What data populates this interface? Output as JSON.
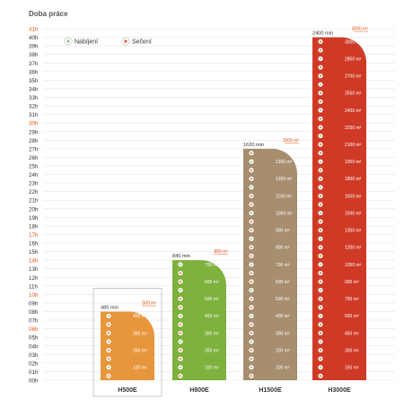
{
  "chart_data": {
    "type": "bar",
    "title": "Doba práce",
    "ylim": [
      0,
      41
    ],
    "y_ticks": [
      "00h",
      "01h",
      "02h",
      "03h",
      "04h",
      "05h",
      "06h",
      "07h",
      "08h",
      "09h",
      "10h",
      "11h",
      "12h",
      "13h",
      "14h",
      "15h",
      "16h",
      "17h",
      "18h",
      "19h",
      "20h",
      "21h",
      "22h",
      "23h",
      "24h",
      "25h",
      "26h",
      "27h",
      "28h",
      "29h",
      "30h",
      "31h",
      "32h",
      "33h",
      "34h",
      "35h",
      "36h",
      "37h",
      "38h",
      "39h",
      "40h",
      "41h"
    ],
    "highlighted_ticks": [
      "06h",
      "10h",
      "14h",
      "17h",
      "30h",
      "41h"
    ],
    "legend": [
      {
        "label": "Nabíjení",
        "icon": "bolt-icon"
      },
      {
        "label": "Sečení",
        "icon": "play-icon"
      }
    ],
    "series": [
      {
        "name": "H500E",
        "work_time_label": "480 min",
        "value_hours": 8,
        "area_max_label": "500 m²",
        "area_labels": [
          "100 m²",
          "200 m²",
          "300 m²",
          "400 m²",
          "500 m²"
        ],
        "color": "#e8963c",
        "selected": true
      },
      {
        "name": "H800E",
        "work_time_label": "840 min",
        "value_hours": 14,
        "area_max_label": "800 m²",
        "area_labels": [
          "100 m²",
          "200 m²",
          "300 m²",
          "400 m²",
          "500 m²",
          "600 m²",
          "700 m²",
          "800 m²"
        ],
        "color": "#7fb13d",
        "selected": false
      },
      {
        "name": "H1500E",
        "work_time_label": "1620 min",
        "value_hours": 27,
        "area_max_label": "1500 m²",
        "area_labels": [
          "100 m²",
          "200 m²",
          "300 m²",
          "400 m²",
          "500 m²",
          "600 m²",
          "700 m²",
          "800 m²",
          "900 m²",
          "1000 m²",
          "1100 m²",
          "1200 m²",
          "1300 m²",
          "1400 m²",
          "1500 m²"
        ],
        "color": "#a68e6f",
        "selected": false
      },
      {
        "name": "H3000E",
        "work_time_label": "2400 min",
        "value_hours": 40,
        "area_max_label": "3000 m²",
        "area_labels": [
          "150 m²",
          "300 m²",
          "450 m²",
          "600 m²",
          "750 m²",
          "900 m²",
          "1050 m²",
          "1200 m²",
          "1350 m²",
          "1500 m²",
          "1650 m²",
          "1800 m²",
          "1950 m²",
          "2100 m²",
          "2250 m²",
          "2400 m²",
          "2550 m²",
          "2700 m²",
          "2850 m²",
          "3000 m²"
        ],
        "color": "#cf3a26",
        "selected": false
      }
    ]
  },
  "colors": {
    "accent": "#e8541f",
    "axis_text": "#333333",
    "axis_highlight": "#e8541f",
    "gridline": "#e6e6e6"
  }
}
